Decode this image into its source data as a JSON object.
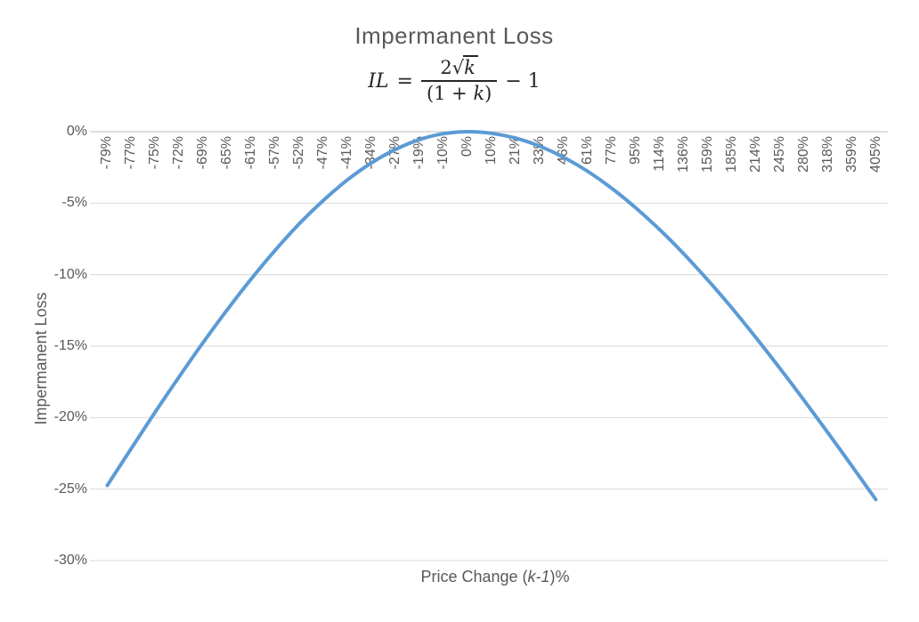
{
  "chart_data": {
    "type": "line",
    "title": "Impermanent Loss",
    "formula": {
      "lhs": "IL",
      "equals": "=",
      "numerator_coeff": "2",
      "radical_sign": "√",
      "numerator_var": "k",
      "denominator_prefix": "(1 + ",
      "denominator_var": "k",
      "denominator_suffix": ")",
      "tail": "− 1"
    },
    "ylabel": "Impermanent Loss",
    "xlabel": {
      "prefix": "Price Change (",
      "var": "k-1",
      "suffix": ")%"
    },
    "x_categories": [
      "-79%",
      "-77%",
      "-75%",
      "-72%",
      "-69%",
      "-65%",
      "-61%",
      "-57%",
      "-52%",
      "-47%",
      "-41%",
      "-34%",
      "-27%",
      "-19%",
      "-10%",
      "0%",
      "10%",
      "21%",
      "33%",
      "46%",
      "61%",
      "77%",
      "95%",
      "114%",
      "136%",
      "159%",
      "185%",
      "214%",
      "245%",
      "280%",
      "318%",
      "359%",
      "405%"
    ],
    "series": [
      {
        "values": [
          -24.74,
          -22.15,
          -19.6,
          -17.12,
          -14.72,
          -12.44,
          -10.28,
          -8.27,
          -6.43,
          -4.8,
          -3.37,
          -2.18,
          -1.24,
          -0.55,
          -0.14,
          0.0,
          -0.11,
          -0.45,
          -1.01,
          -1.79,
          -2.77,
          -3.95,
          -5.32,
          -6.85,
          -8.54,
          -10.37,
          -12.32,
          -14.39,
          -16.54,
          -18.76,
          -21.05,
          -23.37,
          -25.73
        ]
      }
    ],
    "y_ticks": [
      "0%",
      "-5%",
      "-10%",
      "-15%",
      "-20%",
      "-25%",
      "-30%"
    ],
    "ylim": [
      -30,
      0
    ],
    "grid": true,
    "legend": "none",
    "line_color": "#5B9BD5",
    "gridline_color": "#D9D9D9",
    "axis_line_color": "#BFBFBF",
    "text_color": "#595959"
  }
}
